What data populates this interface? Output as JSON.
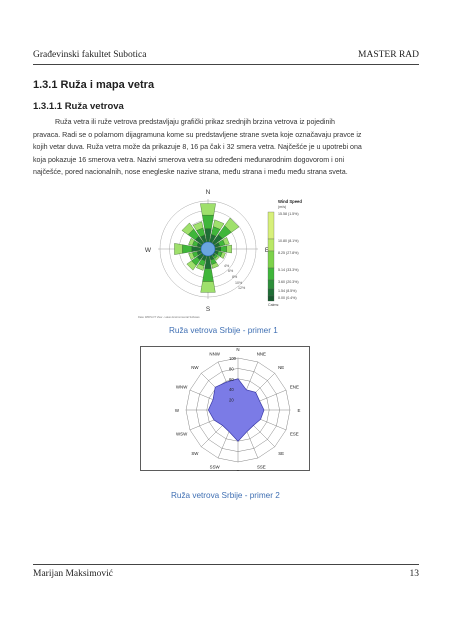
{
  "header": {
    "left": "Građevinski fakultet Subotica",
    "right": "MASTER RAD"
  },
  "section": {
    "title": "1.3.1  Ruža i mapa vetra"
  },
  "subsection": {
    "title": "1.3.1.1  Ruža vetrova"
  },
  "paragraph": {
    "lines": [
      "Ruža vetra ili ruže vetrova predstavljaju grafički prikaz srednjih brzina vetrova iz pojedinih",
      "pravaca. Radi se o polarnom dijagramuna kome su predstavljene strane sveta koje označavaju pravce iz",
      "kojih vetar duva. Ruža vetra može da prikazuje 8, 16 pa čak i 32 smera vetra. Najčešće je u upotrebi ona",
      "koja pokazuje 16 smerova vetra. Nazivi smerova vetra su određeni međunarodnim dogovorom i oni",
      "najčešće, pored nacionalnih, nose enegleske nazive strana, među strana i među među strana sveta."
    ]
  },
  "figure1": {
    "caption": "Ruža vetrova Srbije - primer 1",
    "compass": {
      "n": "N",
      "e": "E",
      "s": "S",
      "w": "W"
    },
    "ring_labels": [
      "4%",
      "6%",
      "8%",
      "10%",
      "12%"
    ],
    "legend": {
      "title": "Wind Speed",
      "unit": "(m/s)",
      "entries": [
        {
          "label": "15.58 (1.5%)",
          "color": "#d7f07a"
        },
        {
          "label": "10.80 (8.1%)",
          "color": "#b9e866"
        },
        {
          "label": "8.25 (27.8%)",
          "color": "#7dd24a"
        },
        {
          "label": "5.14 (33.3%)",
          "color": "#3fb63a"
        },
        {
          "label": "3.60 (20.3%)",
          "color": "#2d8f3a"
        },
        {
          "label": "1.54 (8.5%)",
          "color": "#1f6e36"
        },
        {
          "label": "0.00 (0.4%)",
          "color": "#175a2e"
        }
      ],
      "calms_label": "Calms:"
    },
    "bottom_note": "Data: WRPLOT View - Lakes Environmental Software",
    "bar_colors": {
      "outer": "#9fe06c",
      "mid": "#3fb63a",
      "inner": "#1f6e36"
    }
  },
  "figure2": {
    "caption": "Ruža vetrova Srbije - primer 2",
    "directions": [
      "N",
      "NNE",
      "NE",
      "ENE",
      "E",
      "ESE",
      "SE",
      "SSE",
      "S",
      "SSW",
      "SW",
      "WSW",
      "W",
      "WNW",
      "NW",
      "NNW"
    ],
    "ring_labels": [
      "100",
      "80",
      "60",
      "40",
      "20"
    ],
    "fill_color": "#7b7be6",
    "chart_data": {
      "type": "radar",
      "categories": [
        "N",
        "NNE",
        "NE",
        "ENE",
        "E",
        "ESE",
        "SE",
        "SSE",
        "S",
        "SSW",
        "SW",
        "WSW",
        "W",
        "WNW",
        "NW",
        "NNW"
      ],
      "values": [
        60,
        42,
        48,
        45,
        50,
        47,
        42,
        45,
        60,
        45,
        42,
        50,
        57,
        52,
        62,
        58
      ],
      "rlim": [
        0,
        100
      ]
    }
  },
  "footer": {
    "author": "Marijan Maksimović",
    "page": "13"
  }
}
